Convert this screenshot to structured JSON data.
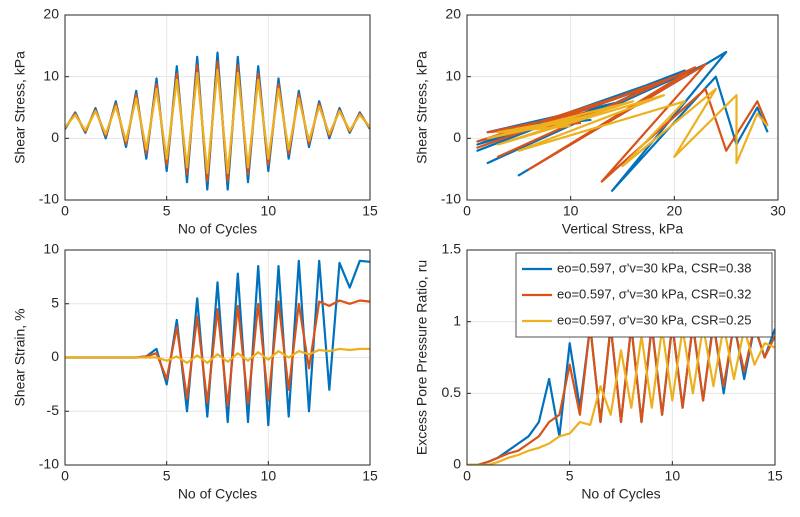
{
  "chart_data": [
    {
      "type": "line",
      "xlabel": "No of Cycles",
      "ylabel": "Shear Stress, kPa",
      "xlim": [
        0,
        15
      ],
      "ylim": [
        -10,
        20
      ],
      "xticks": [
        0,
        5,
        10,
        15
      ],
      "yticks": [
        -10,
        0,
        10,
        20
      ],
      "grid": true,
      "x": [
        0,
        0.5,
        1,
        1.5,
        2,
        2.5,
        3,
        3.5,
        4,
        4.5,
        5,
        5.5,
        6,
        6.5,
        7,
        7.5,
        8,
        8.5,
        9,
        9.5,
        10,
        10.5,
        11,
        11.5,
        12,
        12.5,
        13,
        13.5,
        14,
        14.5,
        15
      ],
      "series": [
        {
          "color": "#0072BD",
          "values": [
            1.5,
            4.2,
            0.9,
            4.9,
            0.0,
            6.0,
            -1.4,
            7.7,
            -3.3,
            9.7,
            -5.3,
            11.7,
            -7.1,
            13.2,
            -8.3,
            13.9,
            -8.3,
            13.2,
            -7.1,
            11.7,
            -5.3,
            9.7,
            -3.3,
            7.7,
            -1.4,
            6.0,
            0.0,
            4.9,
            0.9,
            4.2,
            1.5
          ]
        },
        {
          "color": "#D95319",
          "values": [
            1.7,
            4.0,
            1.1,
            4.6,
            0.4,
            5.6,
            -0.9,
            7.1,
            -2.5,
            8.8,
            -4.3,
            10.5,
            -5.8,
            11.8,
            -6.9,
            12.4,
            -6.9,
            11.8,
            -5.8,
            10.5,
            -4.3,
            8.8,
            -2.5,
            7.1,
            -0.9,
            5.6,
            0.4,
            4.6,
            1.1,
            4.0,
            1.7
          ]
        },
        {
          "color": "#EDB120",
          "values": [
            1.8,
            3.8,
            1.3,
            4.4,
            0.7,
            5.2,
            -0.4,
            6.5,
            -1.8,
            8.0,
            -3.3,
            9.5,
            -4.7,
            10.6,
            -5.6,
            11.1,
            -5.6,
            10.6,
            -4.7,
            9.5,
            -3.3,
            8.0,
            -1.8,
            6.5,
            -0.4,
            5.2,
            0.7,
            4.4,
            1.3,
            3.8,
            1.8
          ]
        }
      ]
    },
    {
      "type": "line",
      "xlabel": "Vertical Stress, kPa",
      "ylabel": "Shear Stress, kPa",
      "xlim": [
        0,
        30
      ],
      "ylim": [
        -10,
        20
      ],
      "xticks": [
        0,
        10,
        20,
        30
      ],
      "yticks": [
        -10,
        0,
        10,
        20
      ],
      "grid": true,
      "series": [
        {
          "color": "#0072BD",
          "x": [
            12,
            2,
            15,
            1,
            18,
            1,
            21,
            2,
            23,
            5,
            25,
            14,
            24,
            26,
            28,
            29
          ],
          "values": [
            3,
            1,
            6,
            -1,
            9,
            -2,
            11,
            -4,
            12,
            -6,
            14,
            -8.5,
            10,
            -1,
            5,
            1
          ]
        },
        {
          "color": "#D95319",
          "x": [
            11,
            2,
            14,
            1,
            17,
            1,
            20,
            3,
            22,
            6,
            23,
            13,
            23,
            25,
            28,
            29
          ],
          "values": [
            2.5,
            1,
            5,
            -0.5,
            8,
            -1.5,
            10,
            -3,
            11.5,
            -5,
            12,
            -7,
            8,
            -2,
            6,
            2
          ]
        },
        {
          "color": "#EDB120",
          "x": [
            10,
            3,
            13,
            2,
            16,
            3,
            19,
            5,
            21,
            15,
            24,
            20,
            26,
            26,
            28,
            29
          ],
          "values": [
            2,
            1,
            4,
            0,
            6,
            -1,
            7,
            -2,
            6,
            -4.5,
            8,
            -3,
            7,
            -4,
            4,
            2
          ]
        }
      ]
    },
    {
      "type": "line",
      "xlabel": "No of Cycles",
      "ylabel": "Shear Strain, %",
      "xlim": [
        0,
        15
      ],
      "ylim": [
        -10,
        10
      ],
      "xticks": [
        0,
        5,
        10,
        15
      ],
      "yticks": [
        -10,
        -5,
        0,
        5,
        10
      ],
      "grid": true,
      "x": [
        0,
        0.5,
        1,
        1.5,
        2,
        2.5,
        3,
        3.5,
        4,
        4.5,
        5,
        5.5,
        6,
        6.5,
        7,
        7.5,
        8,
        8.5,
        9,
        9.5,
        10,
        10.5,
        11,
        11.5,
        12,
        12.5,
        13,
        13.5,
        14,
        14.5,
        15
      ],
      "series": [
        {
          "color": "#0072BD",
          "values": [
            0,
            0,
            0,
            0,
            0,
            0,
            0,
            0,
            0.1,
            0.8,
            -2.5,
            3.5,
            -5,
            5.5,
            -5.5,
            7,
            -6,
            7.8,
            -6,
            8.5,
            -6.3,
            8.5,
            -5.5,
            9,
            -5,
            9,
            -3,
            8.8,
            6.5,
            9,
            8.9
          ]
        },
        {
          "color": "#D95319",
          "values": [
            0,
            0,
            0,
            0,
            0,
            0,
            0,
            0,
            0.1,
            0.4,
            -2,
            2.8,
            -3.8,
            3.8,
            -4.2,
            4.5,
            -4.5,
            4.8,
            -4.3,
            5,
            -4,
            5.2,
            -3,
            5,
            -1,
            5.2,
            4.8,
            5.3,
            5,
            5.3,
            5.2
          ]
        },
        {
          "color": "#EDB120",
          "values": [
            0,
            0,
            0,
            0,
            0,
            0,
            0,
            0,
            0,
            0,
            -0.3,
            0.1,
            -0.5,
            0.2,
            -0.5,
            0.3,
            -0.4,
            0.4,
            -0.3,
            0.5,
            -0.2,
            0.6,
            0,
            0.6,
            0.3,
            0.7,
            0.6,
            0.8,
            0.7,
            0.8,
            0.8
          ]
        }
      ]
    },
    {
      "type": "line",
      "xlabel": "No of Cycles",
      "ylabel": "Excess Pore Pressure Ratio, ru",
      "xlim": [
        0,
        15
      ],
      "ylim": [
        0,
        1.5
      ],
      "xticks": [
        0,
        5,
        10,
        15
      ],
      "yticks": [
        0,
        0.5,
        1,
        1.5
      ],
      "grid": true,
      "legend": "upper right",
      "x": [
        0,
        0.5,
        1,
        1.5,
        2,
        2.5,
        3,
        3.5,
        4,
        4.5,
        5,
        5.5,
        6,
        6.5,
        7,
        7.5,
        8,
        8.5,
        9,
        9.5,
        10,
        10.5,
        11,
        11.5,
        12,
        12.5,
        13,
        13.5,
        14,
        14.5,
        15
      ],
      "series": [
        {
          "name": "eo=0.597, σ'v=30 kPa, CSR=0.38",
          "color": "#0072BD",
          "values": [
            0,
            0,
            0.02,
            0.05,
            0.1,
            0.15,
            0.2,
            0.3,
            0.6,
            0.2,
            0.85,
            0.4,
            0.97,
            0.3,
            0.97,
            0.3,
            0.97,
            0.3,
            0.98,
            0.35,
            0.98,
            0.4,
            0.98,
            0.45,
            1.0,
            0.5,
            1.0,
            0.6,
            0.97,
            0.75,
            0.95
          ]
        },
        {
          "name": "eo=0.597, σ'v=30 kPa, CSR=0.32",
          "color": "#D95319",
          "values": [
            0,
            0,
            0.02,
            0.05,
            0.08,
            0.1,
            0.15,
            0.2,
            0.3,
            0.35,
            0.7,
            0.35,
            0.97,
            0.3,
            0.97,
            0.3,
            0.97,
            0.3,
            0.97,
            0.35,
            0.98,
            0.4,
            0.98,
            0.45,
            0.98,
            0.55,
            0.98,
            0.65,
            0.97,
            0.75,
            0.9
          ]
        },
        {
          "name": "eo=0.597, σ'v=30 kPa, CSR=0.25",
          "color": "#EDB120",
          "values": [
            0,
            0,
            0,
            0.02,
            0.05,
            0.07,
            0.1,
            0.12,
            0.15,
            0.2,
            0.22,
            0.3,
            0.28,
            0.55,
            0.35,
            0.8,
            0.4,
            0.9,
            0.4,
            0.95,
            0.45,
            0.95,
            0.5,
            0.97,
            0.55,
            0.97,
            0.6,
            0.95,
            0.7,
            0.85,
            0.82
          ]
        }
      ]
    }
  ]
}
